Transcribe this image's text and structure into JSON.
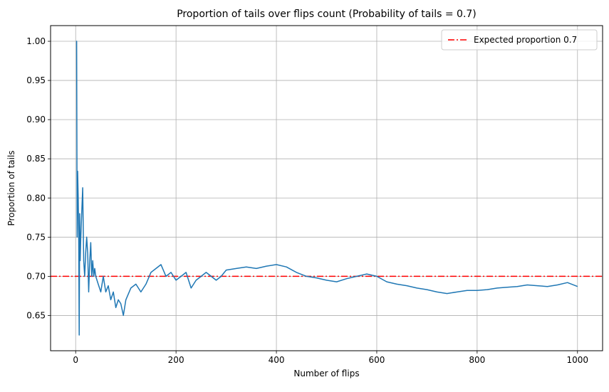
{
  "chart_data": {
    "type": "line",
    "title": "Proportion of tails over flips count (Probability of tails = 0.7)",
    "xlabel": "Number of flips",
    "ylabel": "Proportion of tails",
    "xlim": [
      -50,
      1050
    ],
    "ylim": [
      0.605,
      1.02
    ],
    "x_ticks": [
      0,
      200,
      400,
      600,
      800,
      1000
    ],
    "y_ticks": [
      0.65,
      0.7,
      0.75,
      0.8,
      0.85,
      0.9,
      0.95,
      1.0
    ],
    "x_tick_labels": [
      "0",
      "200",
      "400",
      "600",
      "800",
      "1000"
    ],
    "y_tick_labels": [
      "0.65",
      "0.70",
      "0.75",
      "0.80",
      "0.85",
      "0.90",
      "0.95",
      "1.00"
    ],
    "grid": true,
    "legend_position": "top-right",
    "series": [
      {
        "color": "#1f77b4",
        "x": [
          1,
          2,
          3,
          4,
          5,
          6,
          7,
          8,
          9,
          10,
          12,
          14,
          16,
          18,
          20,
          22,
          24,
          26,
          28,
          30,
          32,
          34,
          36,
          38,
          40,
          45,
          50,
          55,
          60,
          65,
          70,
          75,
          80,
          85,
          90,
          95,
          100,
          110,
          120,
          130,
          140,
          150,
          160,
          170,
          180,
          190,
          200,
          210,
          220,
          230,
          240,
          250,
          260,
          270,
          280,
          290,
          300,
          320,
          340,
          360,
          380,
          400,
          420,
          440,
          460,
          480,
          500,
          520,
          540,
          560,
          580,
          600,
          620,
          640,
          660,
          680,
          700,
          720,
          740,
          760,
          780,
          800,
          820,
          840,
          860,
          880,
          900,
          920,
          940,
          960,
          980,
          1000
        ],
        "values": [
          1.0,
          1.0,
          0.75,
          0.834,
          0.8,
          0.75,
          0.625,
          0.78,
          0.72,
          0.745,
          0.78,
          0.813,
          0.72,
          0.7,
          0.73,
          0.75,
          0.73,
          0.68,
          0.72,
          0.743,
          0.7,
          0.72,
          0.7,
          0.71,
          0.7,
          0.69,
          0.68,
          0.7,
          0.68,
          0.688,
          0.67,
          0.68,
          0.66,
          0.67,
          0.665,
          0.65,
          0.67,
          0.685,
          0.69,
          0.68,
          0.69,
          0.705,
          0.71,
          0.715,
          0.7,
          0.705,
          0.695,
          0.7,
          0.705,
          0.685,
          0.695,
          0.7,
          0.705,
          0.7,
          0.695,
          0.7,
          0.708,
          0.71,
          0.712,
          0.71,
          0.713,
          0.715,
          0.712,
          0.705,
          0.7,
          0.698,
          0.695,
          0.693,
          0.697,
          0.7,
          0.703,
          0.7,
          0.693,
          0.69,
          0.688,
          0.685,
          0.683,
          0.68,
          0.678,
          0.68,
          0.682,
          0.682,
          0.683,
          0.685,
          0.686,
          0.687,
          0.689,
          0.688,
          0.687,
          0.689,
          0.692,
          0.687
        ]
      }
    ],
    "reference_lines": [
      {
        "label": "Expected proportion 0.7",
        "y": 0.7,
        "color": "#ff0000",
        "style": "dash-dot"
      }
    ]
  }
}
